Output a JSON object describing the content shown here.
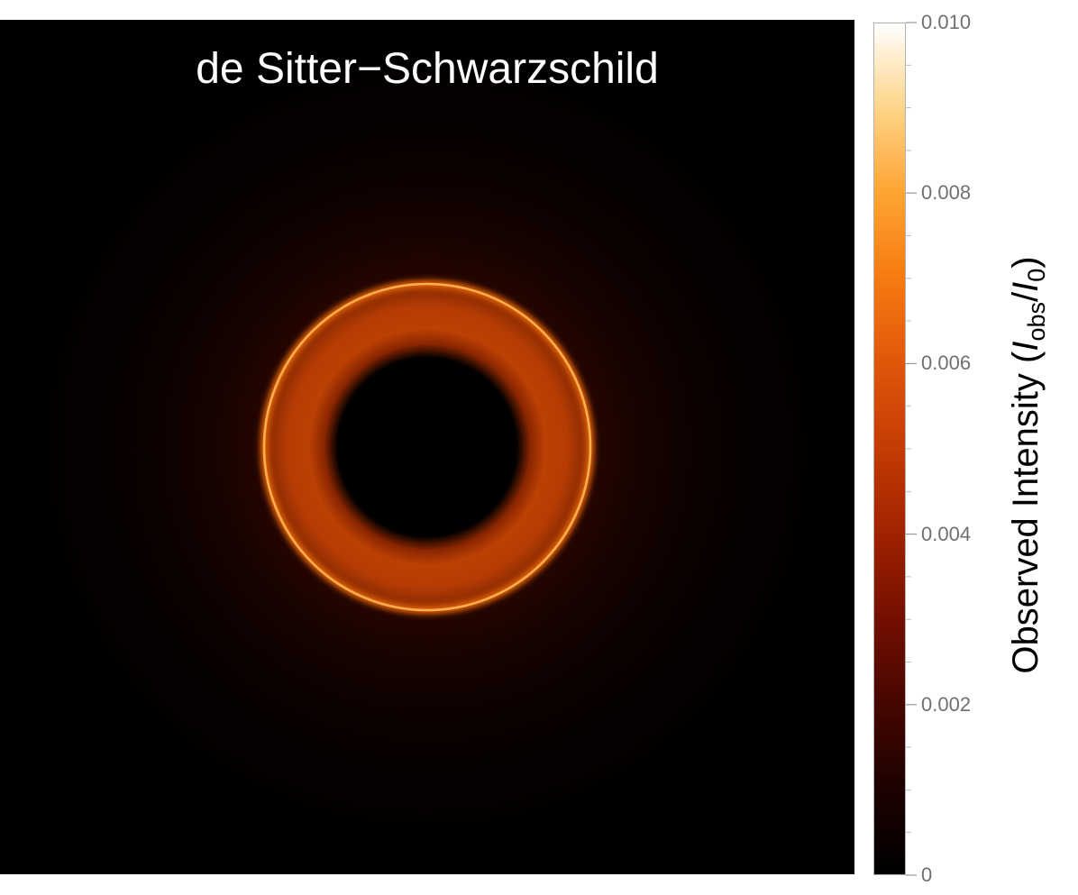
{
  "chart_data": {
    "type": "heatmap",
    "title": "de Sitter−Schwarzschild",
    "image": {
      "description_type": "radial intensity image",
      "shadow_radius": 0.21,
      "photon_ring_radius": 0.38,
      "outer_glow_radius": 0.95,
      "center": [
        0.5,
        0.5
      ]
    },
    "colorbar": {
      "label_prefix": "Observed Intensity (",
      "label_I": "I",
      "label_sub_obs": "obs",
      "label_slash": "/",
      "label_sub_0": "0",
      "label_suffix": ")",
      "range": [
        0,
        0.01
      ],
      "ticks": [
        {
          "value": 0,
          "label": "0"
        },
        {
          "value": 0.002,
          "label": "0.002"
        },
        {
          "value": 0.004,
          "label": "0.004"
        },
        {
          "value": 0.006,
          "label": "0.006"
        },
        {
          "value": 0.008,
          "label": "0.008"
        },
        {
          "value": 0.01,
          "label": "0.010"
        }
      ],
      "minor_step": 0.0005,
      "colormap": [
        {
          "stop": 0.0,
          "color": "#000000"
        },
        {
          "stop": 0.1,
          "color": "#1c0200"
        },
        {
          "stop": 0.2,
          "color": "#460600"
        },
        {
          "stop": 0.3,
          "color": "#740f00"
        },
        {
          "stop": 0.4,
          "color": "#a02200"
        },
        {
          "stop": 0.5,
          "color": "#c43b03"
        },
        {
          "stop": 0.6,
          "color": "#e0560a"
        },
        {
          "stop": 0.7,
          "color": "#f77a10"
        },
        {
          "stop": 0.8,
          "color": "#fda432"
        },
        {
          "stop": 0.9,
          "color": "#fed487"
        },
        {
          "stop": 1.0,
          "color": "#ffffff"
        }
      ]
    }
  }
}
